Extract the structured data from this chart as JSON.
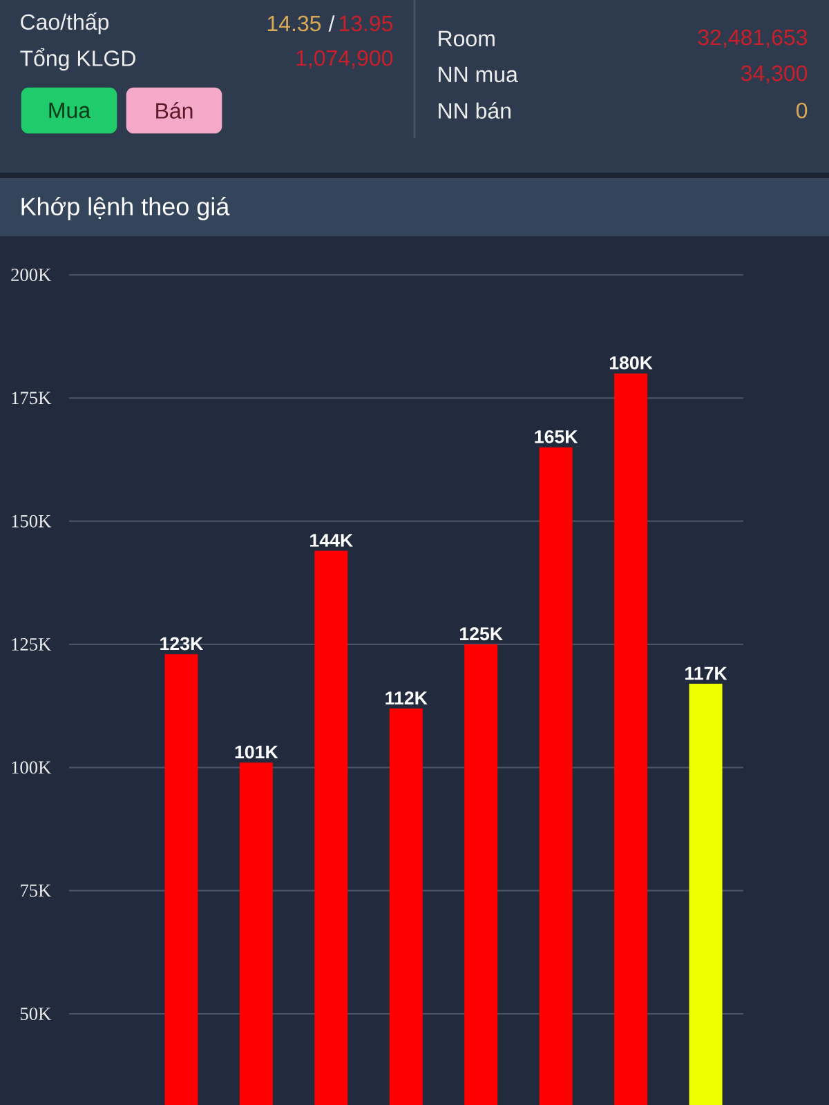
{
  "chart_data": {
    "type": "bar",
    "title": "Khớp lệnh theo giá",
    "categories": [
      null,
      null,
      null,
      null,
      null,
      null,
      null,
      null
    ],
    "values": [
      123000,
      101000,
      144000,
      112000,
      125000,
      165000,
      180000,
      117000
    ],
    "value_labels": [
      "123K",
      "101K",
      "144K",
      "112K",
      "125K",
      "165K",
      "180K",
      "117K"
    ],
    "colors": [
      "#ff0000",
      "#ff0000",
      "#ff0000",
      "#ff0000",
      "#ff0000",
      "#ff0000",
      "#ff0000",
      "#f0ff00"
    ],
    "ylim": [
      31500,
      200000
    ],
    "yticks": [
      {
        "value": 50000,
        "label": "50K"
      },
      {
        "value": 75000,
        "label": "75K"
      },
      {
        "value": 100000,
        "label": "100K"
      },
      {
        "value": 125000,
        "label": "125K"
      },
      {
        "value": 150000,
        "label": "150K"
      },
      {
        "value": 175000,
        "label": "175K"
      },
      {
        "value": 200000,
        "label": "200K"
      }
    ],
    "grid": "y",
    "tick_labels": "y",
    "annotations": [
      "Cao/thấp",
      "14.35",
      "/",
      "13.95",
      "Tổng KLGD",
      "1,074,900",
      "Mua",
      "Bán",
      "Room",
      "32,481,653",
      "NN mua",
      "34,300",
      "NN bán",
      "0"
    ]
  }
}
